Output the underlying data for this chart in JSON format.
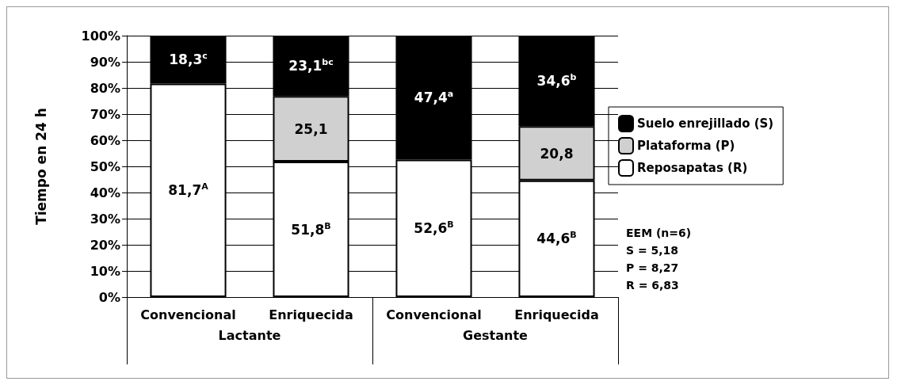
{
  "chart_data": {
    "type": "bar",
    "stacked": true,
    "ylabel": "Tiempo en 24 h",
    "categories": [
      "Convencional",
      "Enriquecida",
      "Convencional",
      "Enriquecida"
    ],
    "series": [
      {
        "name": "Reposapatas (R)",
        "color": "#ffffff",
        "values": [
          81.7,
          51.8,
          52.6,
          44.6
        ],
        "value_labels": [
          "81,7$^{A}$",
          "51,8$^{B}$",
          "52,6$^{B}$",
          "44,6$^{B}$"
        ]
      },
      {
        "name": "Plataforma (P)",
        "color": "#d0d0d0",
        "values": [
          null,
          25.1,
          null,
          20.8
        ],
        "value_labels": [
          null,
          "25,1",
          null,
          "20,8"
        ]
      },
      {
        "name": "Suelo enrejillado (S)",
        "color": "#000000",
        "values": [
          18.3,
          23.1,
          47.4,
          34.6
        ],
        "value_labels": [
          "18,3$^{c}$",
          "23,1$^{bc}$",
          "47,4$^{a}$",
          "34,6$^{b}$"
        ]
      }
    ],
    "ylim": [
      0,
      100
    ],
    "yticks": [
      {
        "value": 0,
        "label": "0%"
      },
      {
        "value": 10,
        "label": "10%"
      },
      {
        "value": 20,
        "label": "20%"
      },
      {
        "value": 30,
        "label": "30%"
      },
      {
        "value": 40,
        "label": "40%"
      },
      {
        "value": 50,
        "label": "50%"
      },
      {
        "value": 60,
        "label": "60%"
      },
      {
        "value": 70,
        "label": "70%"
      },
      {
        "value": 80,
        "label": "80%"
      },
      {
        "value": 90,
        "label": "90%"
      },
      {
        "value": 100,
        "label": "100%"
      }
    ],
    "grid": "y",
    "legend": "right",
    "annotations": [
      "Lactante",
      "Gestante",
      "EEM (n=6)",
      "S = 5,18",
      "P = 8,27",
      "R = 6,83"
    ]
  }
}
